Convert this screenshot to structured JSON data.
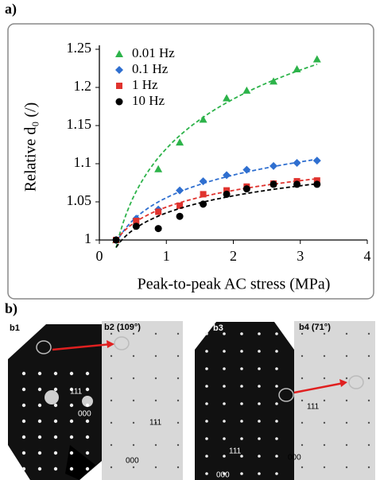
{
  "chart_data": {
    "type": "scatter",
    "panel_label": "a)",
    "x_label": "Peak-to-peak AC stress (MPa)",
    "y_label": "Relative d₀ (/)",
    "xlim": [
      0,
      4
    ],
    "xticks": [
      0,
      1,
      2,
      3,
      4
    ],
    "ylim": [
      1,
      1.25
    ],
    "yticks": [
      1,
      1.05,
      1.1,
      1.15,
      1.2,
      1.25
    ],
    "legend": "upper left",
    "fit_lines": "dashed",
    "series": [
      {
        "name": "0.01 Hz",
        "color": "#2db34a",
        "marker": "triangle",
        "x": [
          0.25,
          0.88,
          1.2,
          1.55,
          1.9,
          2.2,
          2.6,
          2.95,
          3.25
        ],
        "values": [
          1.0,
          1.093,
          1.128,
          1.158,
          1.186,
          1.196,
          1.208,
          1.224,
          1.237
        ]
      },
      {
        "name": "0.1 Hz",
        "color": "#2f6fd0",
        "marker": "diamond",
        "x": [
          0.25,
          0.55,
          0.88,
          1.2,
          1.55,
          1.9,
          2.2,
          2.6,
          2.95,
          3.25
        ],
        "values": [
          1.0,
          1.028,
          1.04,
          1.065,
          1.077,
          1.085,
          1.092,
          1.097,
          1.101,
          1.104
        ]
      },
      {
        "name": "1 Hz",
        "color": "#e0332e",
        "marker": "square",
        "x": [
          0.25,
          0.55,
          0.88,
          1.2,
          1.55,
          1.9,
          2.2,
          2.6,
          2.95,
          3.25
        ],
        "values": [
          1.0,
          1.025,
          1.037,
          1.045,
          1.06,
          1.065,
          1.07,
          1.074,
          1.077,
          1.078
        ]
      },
      {
        "name": "10 Hz",
        "color": "#000000",
        "marker": "circle",
        "x": [
          0.25,
          0.55,
          0.88,
          1.2,
          1.55,
          1.9,
          2.2,
          2.6,
          2.95,
          3.25
        ],
        "values": [
          1.0,
          1.018,
          1.015,
          1.031,
          1.047,
          1.06,
          1.067,
          1.073,
          1.073,
          1.073
        ]
      }
    ]
  },
  "panel_b": {
    "label": "b)",
    "images": [
      {
        "label": "b1",
        "indices": [
          "111",
          "000"
        ]
      },
      {
        "label": "b2 (109°)",
        "indices": [
          "111",
          "000"
        ]
      },
      {
        "label": "b3",
        "indices": [
          "111",
          "000"
        ]
      },
      {
        "label": "b4 (71°)",
        "indices": [
          "111",
          "000"
        ]
      }
    ]
  }
}
